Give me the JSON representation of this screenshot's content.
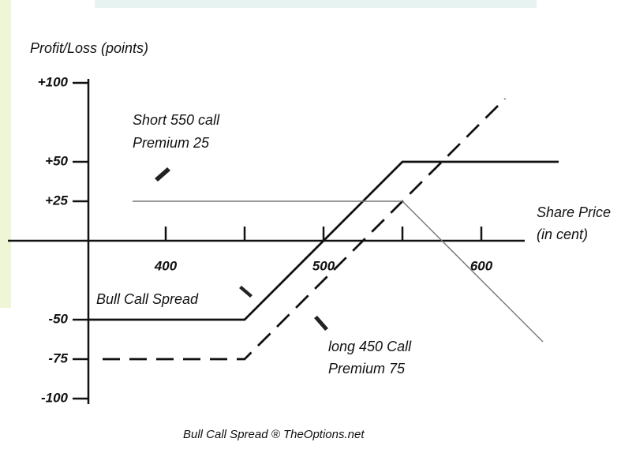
{
  "chart_data": {
    "type": "line",
    "ylabel": "Profit/Loss (points)",
    "xlabel": [
      "Share Price",
      "(in cent)"
    ],
    "footer": "Bull Call Spread ® TheOptions.net",
    "xlim": [
      300,
      627.5
    ],
    "ylim": [
      -102.5,
      102.5
    ],
    "xticks": [
      400,
      500,
      600
    ],
    "xminorticks": [
      450,
      550
    ],
    "yticks": [
      {
        "value": 100,
        "label": "+100"
      },
      {
        "value": 50,
        "label": "+50"
      },
      {
        "value": 25,
        "label": "+25"
      },
      -50,
      -75,
      -100
    ],
    "series": [
      {
        "name": "Bull Call Spread",
        "color": "#111111",
        "style": "solid",
        "x": [
          351,
          450,
          550,
          649
        ],
        "values": [
          -50,
          -50,
          50,
          50
        ]
      },
      {
        "name": "long 450 Call",
        "color": "#111111",
        "style": "dashed",
        "x": [
          360,
          450,
          615
        ],
        "values": [
          -75,
          -75,
          90
        ]
      },
      {
        "name": "Short 550 call",
        "color": "#777777",
        "style": "thin",
        "x": [
          379,
          550,
          639
        ],
        "values": [
          25,
          25,
          -64
        ]
      }
    ],
    "annotations": [
      "Premium 25",
      "Premium 75"
    ]
  }
}
